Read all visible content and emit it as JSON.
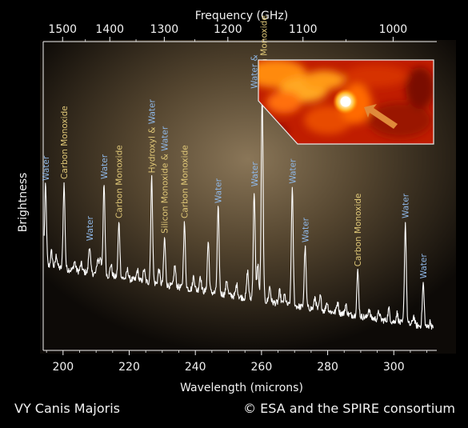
{
  "credit": {
    "object_name": "VY Canis Majoris",
    "copyright": "© ESA and the SPIRE consortium"
  },
  "inset": {
    "description_icon": "thermal-image-inset",
    "arrow_color": "#e08a3a"
  },
  "colors": {
    "water_label": "#8fb8e8",
    "other_label": "#e0c878",
    "axis": "#f2f2f2",
    "spectrum": "#ffffff",
    "inset_border": "#e8e8e8"
  },
  "chart_data": {
    "type": "line",
    "xlabel": "Wavelength (microns)",
    "ylabel": "Brightness",
    "x2label": "Frequency (GHz)",
    "xlim": [
      194,
      313
    ],
    "ylim": [
      0,
      1
    ],
    "xticks": [
      200,
      220,
      240,
      260,
      280,
      300
    ],
    "x2ticks": [
      1500,
      1400,
      1300,
      1200,
      1100,
      1000
    ],
    "grid": false,
    "lines": [
      {
        "x": 194.7,
        "height": 0.515,
        "species": "water",
        "label": "Water"
      },
      {
        "x": 200.3,
        "height": 0.52,
        "species": "other",
        "label": "Carbon Monoxide"
      },
      {
        "x": 208.0,
        "height": 0.315,
        "species": "water",
        "label": "Water"
      },
      {
        "x": 212.4,
        "height": 0.52,
        "species": "water",
        "label": "Water"
      },
      {
        "x": 216.9,
        "height": 0.39,
        "species": "other",
        "label": "Carbon Monoxide"
      },
      {
        "x": 226.8,
        "height": 0.54,
        "species": "other",
        "label": "Hydroxyl & Water"
      },
      {
        "x": 230.7,
        "height": 0.34,
        "species": "other",
        "label": "Silicon Monoxide & Water"
      },
      {
        "x": 236.7,
        "height": 0.39,
        "species": "other",
        "label": "Carbon Monoxide"
      },
      {
        "x": 243.9,
        "height": 0.33,
        "species": "water",
        "label": ""
      },
      {
        "x": 246.9,
        "height": 0.44,
        "species": "water",
        "label": "Water"
      },
      {
        "x": 257.8,
        "height": 0.495,
        "species": "water",
        "label": "Water"
      },
      {
        "x": 260.2,
        "height": 0.82,
        "species": "water",
        "label": "Water & Carbon Monoxide"
      },
      {
        "x": 269.3,
        "height": 0.505,
        "species": "water",
        "label": "Water"
      },
      {
        "x": 273.2,
        "height": 0.31,
        "species": "water",
        "label": "Water"
      },
      {
        "x": 289.1,
        "height": 0.23,
        "species": "other",
        "label": "Carbon Monoxide"
      },
      {
        "x": 303.5,
        "height": 0.39,
        "species": "water",
        "label": "Water"
      },
      {
        "x": 308.9,
        "height": 0.19,
        "species": "water",
        "label": "Water"
      }
    ]
  }
}
